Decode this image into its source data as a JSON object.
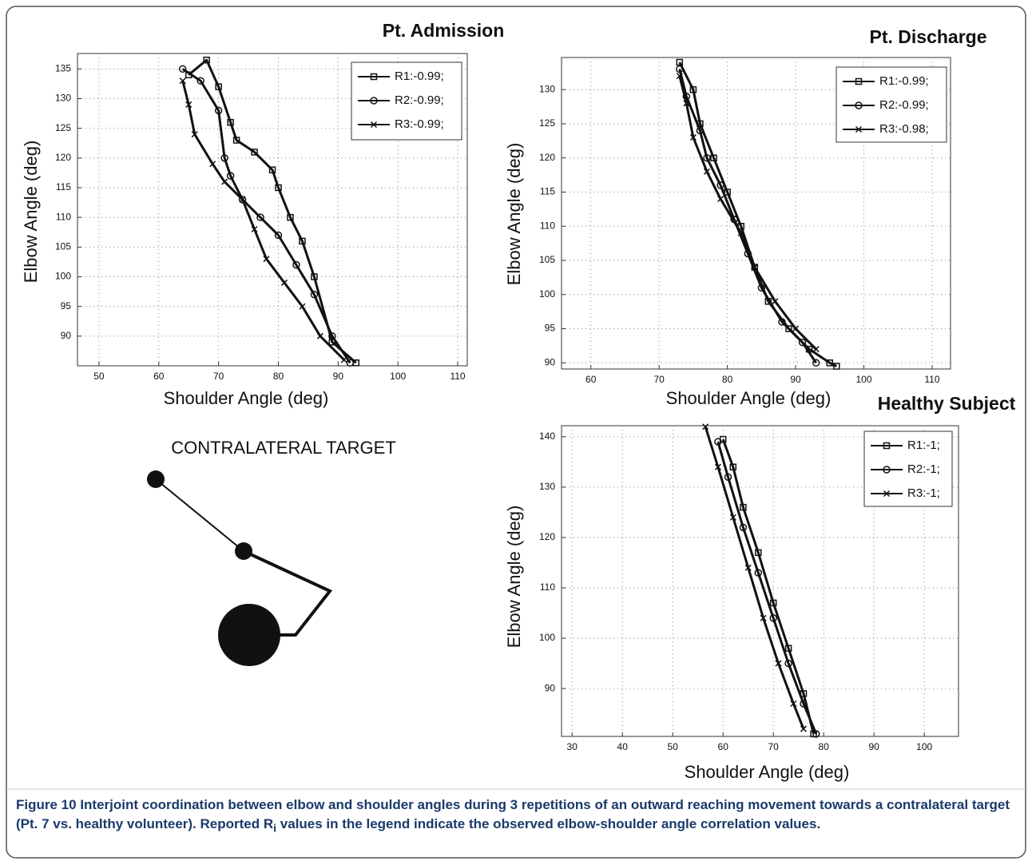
{
  "chart_data": [
    {
      "type": "line",
      "title": "Pt. Admission",
      "xlabel": "Shoulder Angle (deg)",
      "ylabel": "Elbow Angle (deg)",
      "xlim": [
        46.4,
        111.6
      ],
      "xticks": [
        50,
        60,
        70,
        80,
        90,
        100,
        110
      ],
      "ylim": [
        85,
        137.6
      ],
      "yticks": [
        90,
        95,
        100,
        105,
        110,
        115,
        120,
        125,
        130,
        135
      ],
      "grid": true,
      "legend": "upper right",
      "series": [
        {
          "name": "R1:-0.99;",
          "color": "#111111",
          "marker": "square",
          "x": [
            93,
            89,
            86,
            84,
            82,
            80,
            79,
            76,
            73,
            72,
            70,
            68,
            65
          ],
          "values": [
            85.5,
            89,
            100,
            106,
            110,
            115,
            118,
            121,
            123,
            126,
            132,
            136.5,
            134
          ]
        },
        {
          "name": "R2:-0.99;",
          "color": "#111111",
          "marker": "circle",
          "x": [
            92,
            89,
            86,
            83,
            80,
            77,
            74,
            72,
            71,
            70,
            67,
            64
          ],
          "values": [
            85.5,
            90,
            97,
            102,
            107,
            110,
            113,
            117,
            120,
            128,
            133,
            135
          ]
        },
        {
          "name": "R3:-0.99;",
          "color": "#111111",
          "marker": "x",
          "x": [
            91,
            87,
            84,
            81,
            78,
            76,
            74,
            71,
            69,
            66,
            65,
            64
          ],
          "values": [
            86,
            90,
            95,
            99,
            103,
            108,
            113,
            116,
            119,
            124,
            129,
            133
          ]
        }
      ]
    },
    {
      "type": "line",
      "title": "Pt. Discharge",
      "xlabel": "Shoulder Angle (deg)",
      "ylabel": "Elbow Angle (deg)",
      "xlim": [
        55.7,
        112.7
      ],
      "xticks": [
        60,
        70,
        80,
        90,
        100,
        110
      ],
      "ylim": [
        89.1,
        134.7
      ],
      "yticks": [
        90,
        95,
        100,
        105,
        110,
        115,
        120,
        125,
        130
      ],
      "grid": true,
      "legend": "upper right",
      "series": [
        {
          "name": "R1:-0.99;",
          "color": "#111111",
          "marker": "square",
          "x": [
            73,
            75,
            76,
            78,
            80,
            82,
            84,
            86,
            89,
            92,
            95,
            96
          ],
          "values": [
            134,
            130,
            125,
            120,
            115,
            110,
            104,
            99,
            95,
            92,
            90,
            89.5
          ]
        },
        {
          "name": "R2:-0.99;",
          "color": "#111111",
          "marker": "circle",
          "x": [
            73,
            74,
            76,
            77,
            79,
            81,
            83,
            85,
            88,
            91,
            93
          ],
          "values": [
            133,
            129,
            124,
            120,
            116,
            111,
            106,
            101,
            96,
            93,
            90
          ]
        },
        {
          "name": "R3:-0.98;",
          "color": "#111111",
          "marker": "x",
          "x": [
            73,
            74,
            75,
            77,
            79,
            82,
            84,
            87,
            90,
            93
          ],
          "values": [
            132,
            128,
            123,
            118,
            114,
            109,
            104,
            99,
            95,
            92
          ]
        }
      ]
    },
    {
      "type": "line",
      "title": "Healthy Subject",
      "xlabel": "Shoulder Angle (deg)",
      "ylabel": "Elbow Angle (deg)",
      "xlim": [
        27.9,
        106.8
      ],
      "xticks": [
        30,
        40,
        50,
        60,
        70,
        80,
        90,
        100
      ],
      "ylim": [
        80.5,
        142.2
      ],
      "yticks": [
        90,
        100,
        110,
        120,
        130,
        140
      ],
      "grid": true,
      "legend": "upper right",
      "series": [
        {
          "name": "R1:-1;",
          "color": "#111111",
          "marker": "square",
          "x": [
            60,
            62,
            64,
            67,
            70,
            73,
            76,
            78
          ],
          "values": [
            139.5,
            134,
            126,
            117,
            107,
            98,
            89,
            81
          ]
        },
        {
          "name": "R2:-1;",
          "color": "#111111",
          "marker": "circle",
          "x": [
            59,
            61,
            64,
            67,
            70,
            73,
            76,
            78.5
          ],
          "values": [
            139,
            132,
            122,
            113,
            104,
            95,
            87,
            81
          ]
        },
        {
          "name": "R3:-1;",
          "color": "#111111",
          "marker": "x",
          "x": [
            56.5,
            59,
            62,
            65,
            68,
            71,
            74,
            76
          ],
          "values": [
            142,
            134,
            124,
            114,
            104,
            95,
            87,
            82
          ]
        }
      ]
    }
  ],
  "diagram": {
    "label": "CONTRALATERAL TARGET"
  },
  "caption": {
    "label": "Figure 10",
    "text": " Interjoint coordination between elbow and shoulder angles during 3 repetitions of an outward reaching movement towards a contralateral target (Pt. 7 vs. healthy volunteer). Reported R",
    "subscript": "i",
    "text_end": " values in the legend indicate the observed elbow-shoulder angle correlation values."
  }
}
